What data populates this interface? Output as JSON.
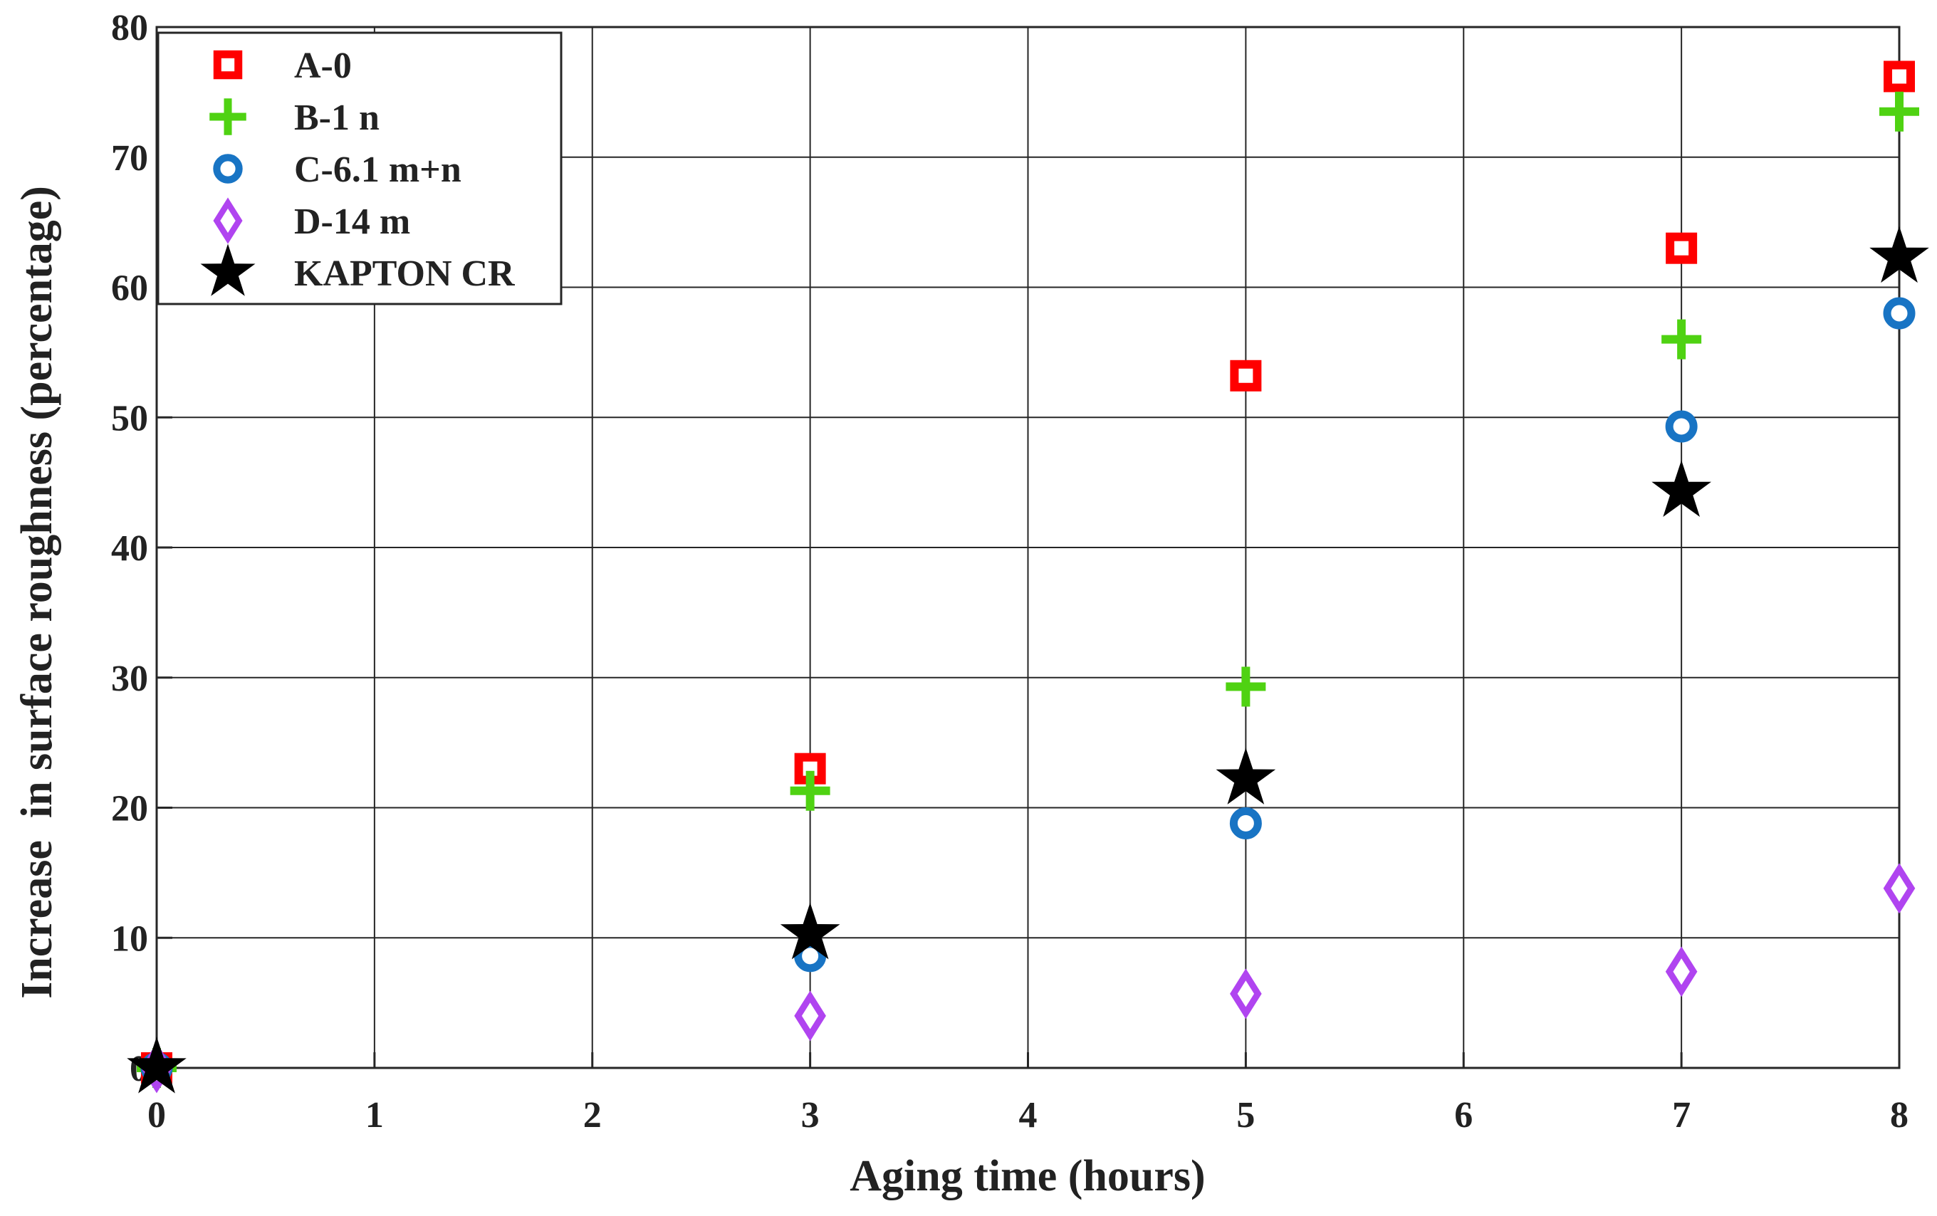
{
  "chart_data": {
    "type": "scatter",
    "title": "",
    "xlabel": "Aging time (hours)",
    "ylabel": "Increase  in surface roughness (percentage)",
    "xlim": [
      0,
      8
    ],
    "ylim": [
      0,
      80
    ],
    "xticks": [
      "0",
      "1",
      "2",
      "3",
      "4",
      "5",
      "6",
      "7",
      "8"
    ],
    "yticks": [
      "0",
      "10",
      "20",
      "30",
      "40",
      "50",
      "60",
      "70",
      "80"
    ],
    "grid": true,
    "legend_position": "top-left",
    "x": [
      0,
      3,
      5,
      7,
      8
    ],
    "series": [
      {
        "name": "A-0",
        "marker": "square",
        "color": "#ff0000",
        "values": [
          0,
          23,
          53.2,
          63,
          76.2
        ]
      },
      {
        "name": "B-1 n",
        "marker": "plus",
        "color": "#4fd212",
        "values": [
          0,
          21.3,
          29.3,
          56,
          73.5
        ]
      },
      {
        "name": "C-6.1 m+n",
        "marker": "circle",
        "color": "#1874c4",
        "values": [
          0,
          8.6,
          18.8,
          49.3,
          58
        ]
      },
      {
        "name": "D-14 m",
        "marker": "diamond",
        "color": "#b044f0",
        "values": [
          0,
          4,
          5.7,
          7.4,
          13.8
        ]
      },
      {
        "name": "KAPTON CR",
        "marker": "star",
        "color": "#000000",
        "values": [
          0,
          10.3,
          22.2,
          44.3,
          62.3
        ]
      }
    ]
  }
}
